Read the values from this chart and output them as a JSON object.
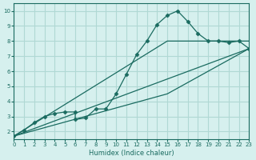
{
  "background_color": "#d6f0ee",
  "grid_color": "#b0d8d4",
  "line_color": "#1a6b60",
  "marker_color": "#1a6b60",
  "xlabel": "Humidex (Indice chaleur)",
  "xlim": [
    0,
    23
  ],
  "ylim": [
    1.5,
    10.5
  ],
  "xticks": [
    0,
    1,
    2,
    3,
    4,
    5,
    6,
    7,
    8,
    9,
    10,
    11,
    12,
    13,
    14,
    15,
    16,
    17,
    18,
    19,
    20,
    21,
    22,
    23
  ],
  "yticks": [
    2,
    3,
    4,
    5,
    6,
    7,
    8,
    9,
    10
  ],
  "series1_x": [
    0,
    1,
    2,
    3,
    4,
    5,
    6,
    6,
    7,
    8,
    9,
    10,
    11,
    12,
    13,
    14,
    15,
    16,
    17,
    18,
    19,
    20,
    21,
    22,
    23
  ],
  "series1_y": [
    1.7,
    2.1,
    2.6,
    3.0,
    3.2,
    3.3,
    3.3,
    2.8,
    2.9,
    3.5,
    3.5,
    4.5,
    5.8,
    7.1,
    8.0,
    9.1,
    9.7,
    10.0,
    9.3,
    8.5,
    8.0,
    8.0,
    7.9,
    8.0,
    7.5
  ],
  "series2_x": [
    0,
    23
  ],
  "series2_y": [
    1.7,
    7.5
  ],
  "series3_x": [
    0,
    15,
    23
  ],
  "series3_y": [
    1.7,
    4.5,
    7.5
  ],
  "series4_x": [
    0,
    15,
    23
  ],
  "series4_y": [
    1.7,
    8.0,
    8.0
  ]
}
